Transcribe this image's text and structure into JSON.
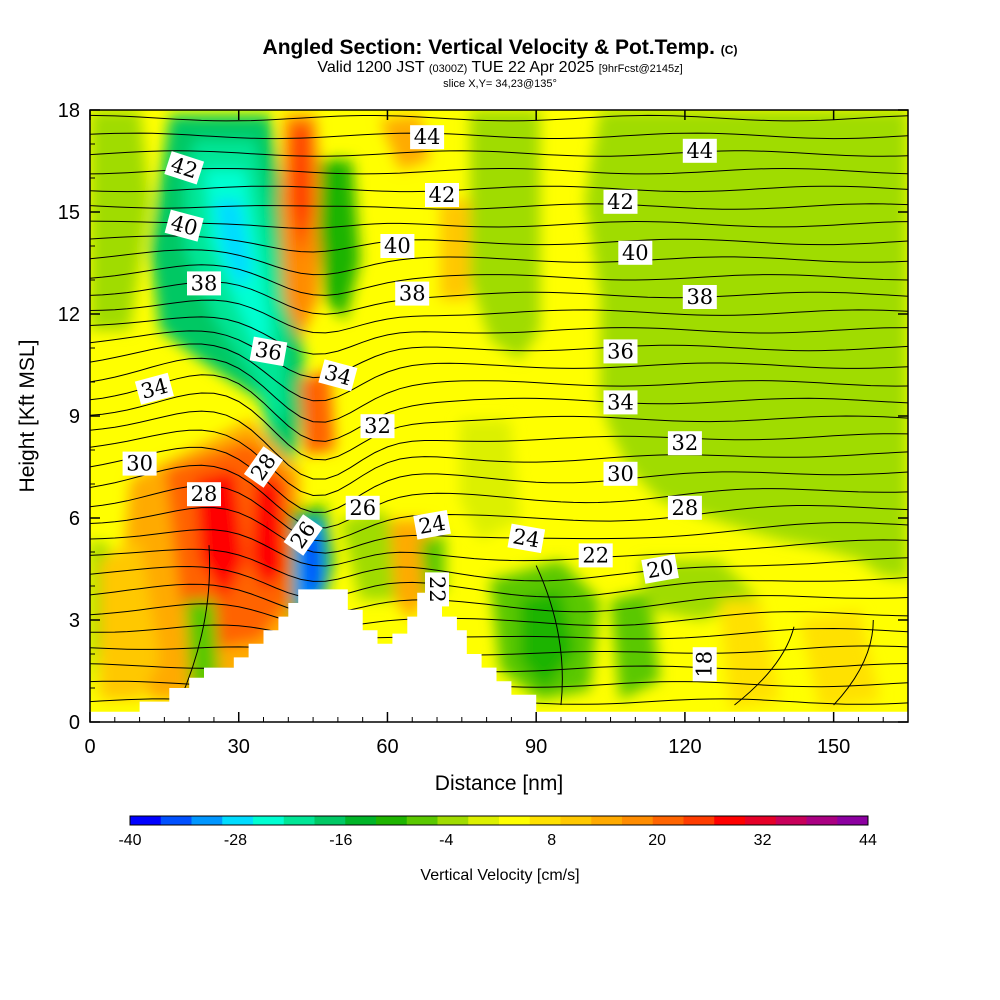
{
  "header": {
    "title_main": "Angled Section: Vertical Velocity & Pot.Temp.",
    "title_mark": "(C)",
    "valid_prefix": "Valid 1200 JST",
    "valid_zulu": "(0300Z)",
    "valid_date": "TUE 22 Apr 2025",
    "valid_fcst": "[9hrFcst@2145z]",
    "slice": "slice X,Y= 34,23@135°"
  },
  "chart_data": {
    "type": "heatmap",
    "xlabel": "Distance [nm]",
    "ylabel": "Height [Kft MSL]",
    "xlim": [
      0,
      165
    ],
    "ylim": [
      0,
      18
    ],
    "xticks": [
      0,
      30,
      60,
      90,
      120,
      150
    ],
    "yticks": [
      0,
      3,
      6,
      9,
      12,
      15,
      18
    ],
    "terrain_kft": [
      [
        0,
        0.3
      ],
      [
        10,
        0.3
      ],
      [
        10,
        0.6
      ],
      [
        16,
        0.6
      ],
      [
        16,
        1.0
      ],
      [
        20,
        1.0
      ],
      [
        20,
        1.3
      ],
      [
        23,
        1.3
      ],
      [
        23,
        1.6
      ],
      [
        29,
        1.6
      ],
      [
        29,
        1.9
      ],
      [
        32,
        1.9
      ],
      [
        32,
        2.3
      ],
      [
        35,
        2.3
      ],
      [
        35,
        2.7
      ],
      [
        38,
        2.7
      ],
      [
        38,
        3.1
      ],
      [
        40,
        3.1
      ],
      [
        40,
        3.5
      ],
      [
        42,
        3.5
      ],
      [
        42,
        3.9
      ],
      [
        52,
        3.9
      ],
      [
        52,
        3.3
      ],
      [
        55,
        3.3
      ],
      [
        55,
        2.7
      ],
      [
        58,
        2.7
      ],
      [
        58,
        2.3
      ],
      [
        61,
        2.3
      ],
      [
        61,
        2.6
      ],
      [
        64,
        2.6
      ],
      [
        64,
        3.1
      ],
      [
        66,
        3.1
      ],
      [
        66,
        3.8
      ],
      [
        71,
        3.8
      ],
      [
        71,
        3.1
      ],
      [
        74,
        3.1
      ],
      [
        74,
        2.7
      ],
      [
        76,
        2.7
      ],
      [
        76,
        2.0
      ],
      [
        79,
        2.0
      ],
      [
        79,
        1.6
      ],
      [
        82,
        1.6
      ],
      [
        82,
        1.2
      ],
      [
        85,
        1.2
      ],
      [
        85,
        0.8
      ],
      [
        90,
        0.8
      ],
      [
        90,
        0.3
      ],
      [
        165,
        0.3
      ]
    ],
    "theta_label_values": [
      18,
      20,
      22,
      24,
      26,
      28,
      30,
      32,
      34,
      36,
      38,
      40,
      42,
      44
    ],
    "contour_labels": [
      {
        "text": "44",
        "x": 68,
        "y": 17.2
      },
      {
        "text": "44",
        "x": 123,
        "y": 16.8
      },
      {
        "text": "42",
        "x": 19,
        "y": 16.3,
        "angle": 18
      },
      {
        "text": "42",
        "x": 71,
        "y": 15.5
      },
      {
        "text": "42",
        "x": 107,
        "y": 15.3
      },
      {
        "text": "40",
        "x": 19,
        "y": 14.6,
        "angle": 15
      },
      {
        "text": "40",
        "x": 62,
        "y": 14.0
      },
      {
        "text": "40",
        "x": 110,
        "y": 13.8
      },
      {
        "text": "38",
        "x": 23,
        "y": 12.9
      },
      {
        "text": "38",
        "x": 65,
        "y": 12.6
      },
      {
        "text": "38",
        "x": 123,
        "y": 12.5
      },
      {
        "text": "36",
        "x": 36,
        "y": 10.9,
        "angle": 10
      },
      {
        "text": "36",
        "x": 107,
        "y": 10.9
      },
      {
        "text": "34",
        "x": 13,
        "y": 9.8,
        "angle": -15
      },
      {
        "text": "34",
        "x": 50,
        "y": 10.2,
        "angle": 15
      },
      {
        "text": "34",
        "x": 107,
        "y": 9.4
      },
      {
        "text": "32",
        "x": 58,
        "y": 8.7
      },
      {
        "text": "32",
        "x": 120,
        "y": 8.2
      },
      {
        "text": "30",
        "x": 10,
        "y": 7.6
      },
      {
        "text": "30",
        "x": 107,
        "y": 7.3
      },
      {
        "text": "28",
        "x": 23,
        "y": 6.7
      },
      {
        "text": "28",
        "x": 35,
        "y": 7.5,
        "angle": -55
      },
      {
        "text": "28",
        "x": 120,
        "y": 6.3
      },
      {
        "text": "26",
        "x": 55,
        "y": 6.3
      },
      {
        "text": "26",
        "x": 43,
        "y": 5.5,
        "angle": -55
      },
      {
        "text": "24",
        "x": 69,
        "y": 5.8,
        "angle": -10
      },
      {
        "text": "24",
        "x": 88,
        "y": 5.4,
        "angle": 10
      },
      {
        "text": "22",
        "x": 102,
        "y": 4.9
      },
      {
        "text": "22",
        "x": 70,
        "y": 3.9,
        "angle": 90
      },
      {
        "text": "20",
        "x": 115,
        "y": 4.5,
        "angle": -10
      },
      {
        "text": "18",
        "x": 124,
        "y": 1.7,
        "angle": -90
      }
    ],
    "colorbar": {
      "title": "Vertical Velocity [cm/s]",
      "tick_labels": [
        "-40",
        "-28",
        "-16",
        "-4",
        "8",
        "20",
        "32",
        "44"
      ],
      "colors": [
        "#0000ff",
        "#0050ff",
        "#0096ff",
        "#00dcff",
        "#00ffd2",
        "#00e696",
        "#00c864",
        "#00b428",
        "#1eb400",
        "#5ac800",
        "#a0dc00",
        "#dcf000",
        "#ffff00",
        "#ffe100",
        "#ffc800",
        "#ffaa00",
        "#ff8c00",
        "#ff6400",
        "#ff3c00",
        "#ff0000",
        "#e60028",
        "#c8005a",
        "#aa0082",
        "#8c00a0"
      ]
    }
  }
}
